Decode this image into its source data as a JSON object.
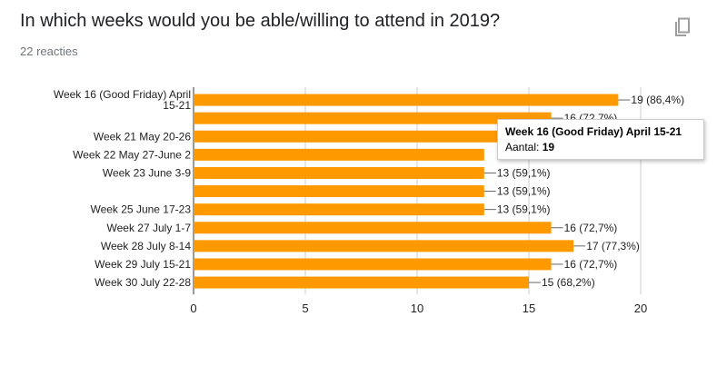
{
  "question": {
    "title": "In which weeks would you be able/willing to attend in 2019?",
    "response_count": "22 reacties",
    "copy_icon": "copy-icon"
  },
  "colors": {
    "bar": "#ff9900",
    "grid": "#cccccc",
    "text": "#222222"
  },
  "chart_data": {
    "type": "bar",
    "orientation": "horizontal",
    "categories": [
      [
        "Week 16 (Good Friday) April",
        "15-21"
      ],
      [
        ""
      ],
      [
        "Week 21 May 20-26"
      ],
      [
        "Week 22 May 27-June 2"
      ],
      [
        "Week 23 June 3-9"
      ],
      [
        ""
      ],
      [
        "Week 25 June 17-23"
      ],
      [
        "Week 27 July 1-7"
      ],
      [
        "Week 28 July 8-14"
      ],
      [
        "Week 29 July 15-21"
      ],
      [
        "Week 30 July 22-28"
      ]
    ],
    "values": [
      19,
      16,
      16,
      13,
      13,
      13,
      13,
      16,
      17,
      16,
      15
    ],
    "data_labels": [
      "19 (86,4%)",
      "16 (72,7%)",
      "",
      "",
      "13 (59,1%)",
      "13 (59,1%)",
      "13 (59,1%)",
      "16 (72,7%)",
      "17 (77,3%)",
      "16 (72,7%)",
      "15 (68,2%)"
    ],
    "xlim": [
      0,
      20
    ],
    "xticks": [
      "0",
      "5",
      "10",
      "15",
      "20"
    ],
    "grid": true
  },
  "tooltip": {
    "title": "Week 16 (Good Friday) April 15-21",
    "label": "Aantal:",
    "value": "19"
  }
}
